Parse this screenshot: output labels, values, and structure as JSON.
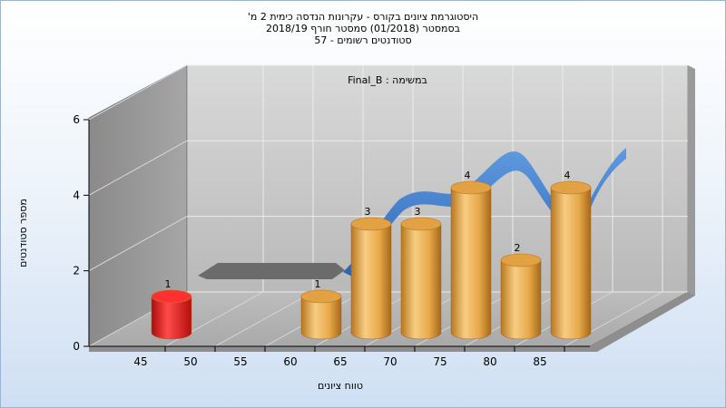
{
  "chart_data": {
    "type": "bar",
    "title_lines": [
      "היסטוגרמת ציונים בקורס - עקרונות הנדסה כימית 2 מ'",
      "בסמסטר  (01/2018)  סמסטר חורף 2018/19",
      "סטודנטים רשומים - 57"
    ],
    "subtitle": "במשימה : Final_B",
    "xlabel": "טווח ציונים",
    "ylabel": "מספר סטודנטים",
    "x_ticks": [
      "45",
      "50",
      "55",
      "60",
      "65",
      "70",
      "75",
      "80",
      "85"
    ],
    "y_ticks": [
      "0",
      "2",
      "4",
      "6"
    ],
    "ylim": [
      0,
      6
    ],
    "bars": [
      {
        "x": 45,
        "value": 1,
        "label": "1",
        "color": "#e41a1a"
      },
      {
        "x": 60,
        "value": 1,
        "label": "1",
        "color": "#e3a94b"
      },
      {
        "x": 65,
        "value": 3,
        "label": "3",
        "color": "#e3a94b"
      },
      {
        "x": 70,
        "value": 3,
        "label": "3",
        "color": "#e3a94b"
      },
      {
        "x": 75,
        "value": 4,
        "label": "4",
        "color": "#e3a94b"
      },
      {
        "x": 80,
        "value": 2,
        "label": "2",
        "color": "#e3a94b"
      },
      {
        "x": 85,
        "value": 4,
        "label": "4",
        "color": "#e3a94b"
      }
    ],
    "distribution_curve": {
      "color": "#3a78c8"
    },
    "grid": true
  }
}
